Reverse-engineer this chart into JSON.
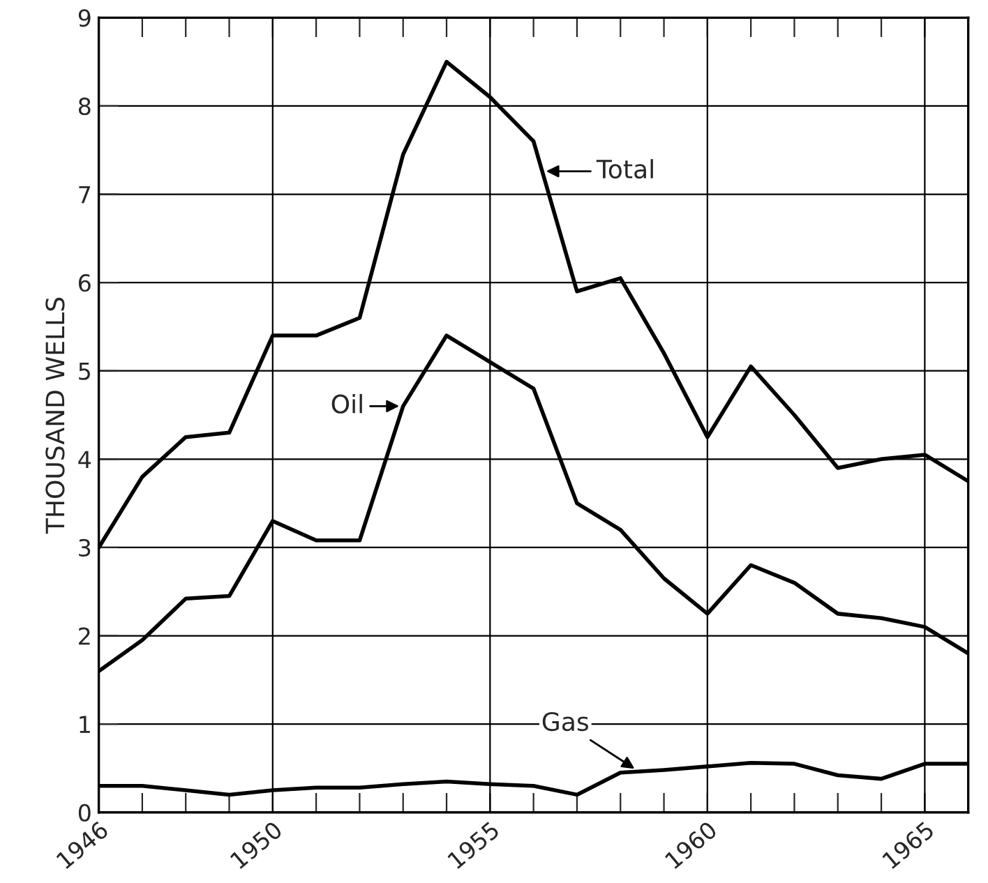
{
  "chart_data": {
    "type": "line",
    "ylabel": "THOUSAND WELLS",
    "x": [
      1946,
      1947,
      1948,
      1949,
      1950,
      1951,
      1952,
      1953,
      1954,
      1955,
      1956,
      1957,
      1958,
      1959,
      1960,
      1961,
      1962,
      1963,
      1964,
      1965,
      1966
    ],
    "series": [
      {
        "color": "#000000",
        "values": [
          3.0,
          3.8,
          4.25,
          4.3,
          5.4,
          5.4,
          5.6,
          7.45,
          8.5,
          8.1,
          7.6,
          5.9,
          6.05,
          5.2,
          4.25,
          5.05,
          4.5,
          3.9,
          4.0,
          4.05,
          3.75
        ]
      },
      {
        "color": "#000000",
        "values": [
          1.6,
          1.95,
          2.42,
          2.45,
          3.3,
          3.08,
          3.08,
          4.6,
          5.4,
          5.1,
          4.8,
          3.5,
          3.2,
          2.65,
          2.25,
          2.8,
          2.6,
          2.25,
          2.2,
          2.1,
          1.8
        ]
      },
      {
        "color": "#000000",
        "values": [
          0.3,
          0.3,
          0.25,
          0.2,
          0.25,
          0.28,
          0.28,
          0.32,
          0.35,
          0.32,
          0.3,
          0.2,
          0.45,
          0.48,
          0.52,
          0.56,
          0.55,
          0.42,
          0.38,
          0.55,
          0.55
        ]
      }
    ],
    "annotations": [
      {
        "text": "Total",
        "x": 1956.2,
        "y": 7.26
      },
      {
        "text": "Oil",
        "x": 1953,
        "y": 4.6
      },
      {
        "text": "Gas",
        "x": 1958.4,
        "y": 0.47
      }
    ],
    "xlim": [
      1946,
      1966
    ],
    "ylim": [
      0,
      9
    ],
    "xticks": [
      1946,
      {
        "value": 1947,
        "label": null
      },
      {
        "value": 1948,
        "label": null
      },
      {
        "value": 1949,
        "label": null
      },
      1950,
      {
        "value": 1951,
        "label": null
      },
      {
        "value": 1952,
        "label": null
      },
      {
        "value": 1953,
        "label": null
      },
      {
        "value": 1954,
        "label": null
      },
      1955,
      {
        "value": 1956,
        "label": null
      },
      {
        "value": 1957,
        "label": null
      },
      {
        "value": 1958,
        "label": null
      },
      {
        "value": 1959,
        "label": null
      },
      1960,
      {
        "value": 1961,
        "label": null
      },
      {
        "value": 1962,
        "label": null
      },
      {
        "value": 1963,
        "label": null
      },
      {
        "value": 1964,
        "label": null
      },
      1965
    ],
    "yticks": [
      0,
      1,
      2,
      3,
      4,
      5,
      6,
      7,
      8,
      9
    ],
    "grid": true,
    "legend": false,
    "marker": "none",
    "line_style": "solid"
  }
}
